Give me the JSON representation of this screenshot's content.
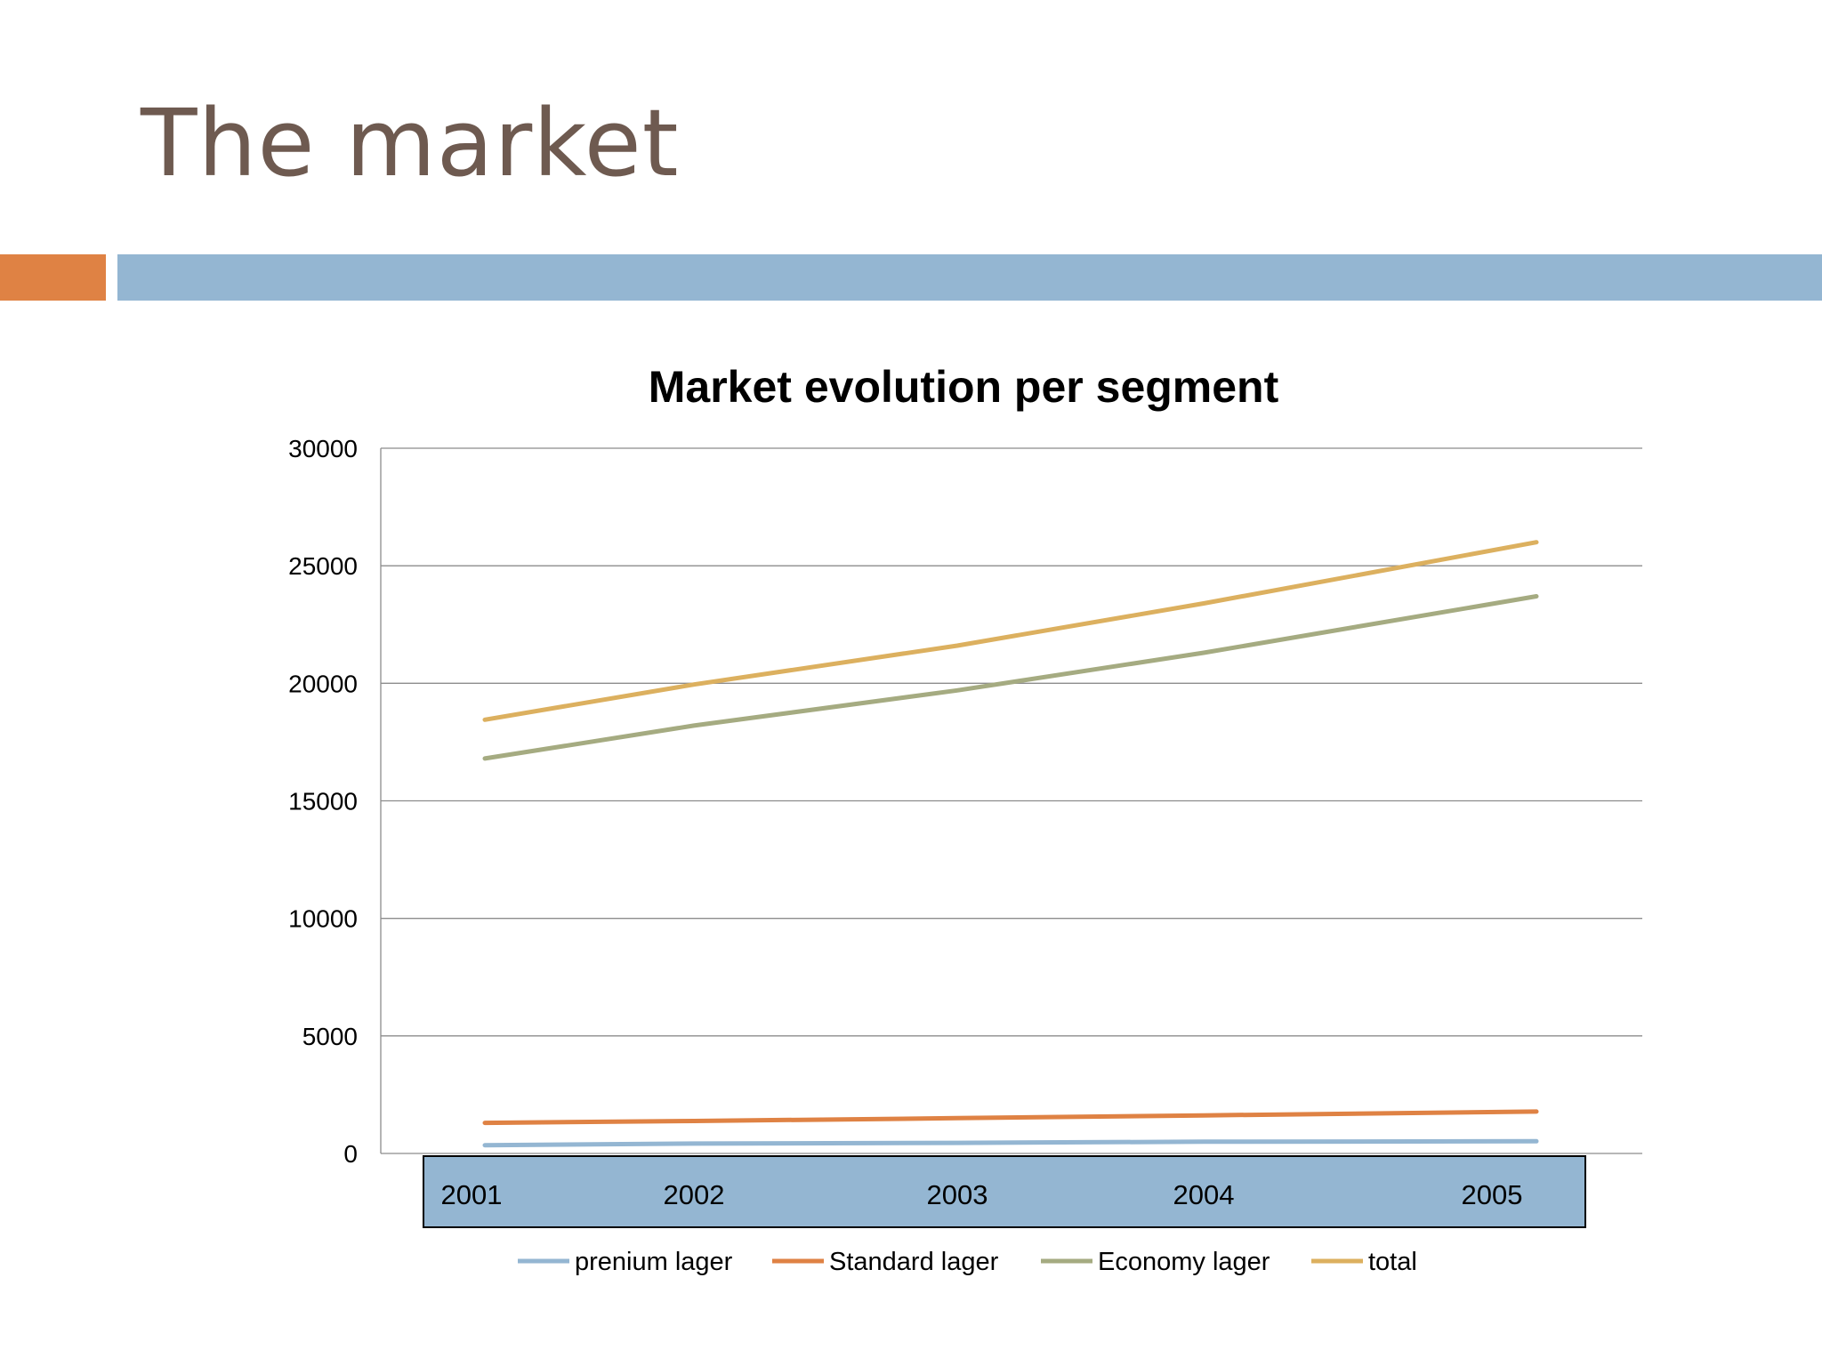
{
  "slide": {
    "title": "The market",
    "accent_colors": {
      "orange": "#df8244",
      "blue": "#94b6d2"
    }
  },
  "chart_data": {
    "type": "line",
    "title": "Market evolution per segment",
    "xlabel": "",
    "ylabel": "",
    "categories": [
      "2001",
      "2002",
      "2003",
      "2004",
      "2005"
    ],
    "ylim": [
      0,
      30000
    ],
    "yticks": [
      "0",
      "5000",
      "10000",
      "15000",
      "20000",
      "25000",
      "30000"
    ],
    "grid": true,
    "legend_position": "bottom",
    "series": [
      {
        "name": "prenium lager",
        "color": "#94b6d2",
        "values": [
          350,
          420,
          450,
          500,
          520
        ]
      },
      {
        "name": "Standard lager",
        "color": "#df8244",
        "values": [
          1300,
          1380,
          1500,
          1620,
          1780
        ]
      },
      {
        "name": "Economy lager",
        "color": "#a5ab81",
        "values": [
          16800,
          18200,
          19700,
          21300,
          23700
        ]
      },
      {
        "name": "total",
        "color": "#dcb05f",
        "values": [
          18450,
          19950,
          21600,
          23400,
          26000
        ]
      }
    ]
  }
}
